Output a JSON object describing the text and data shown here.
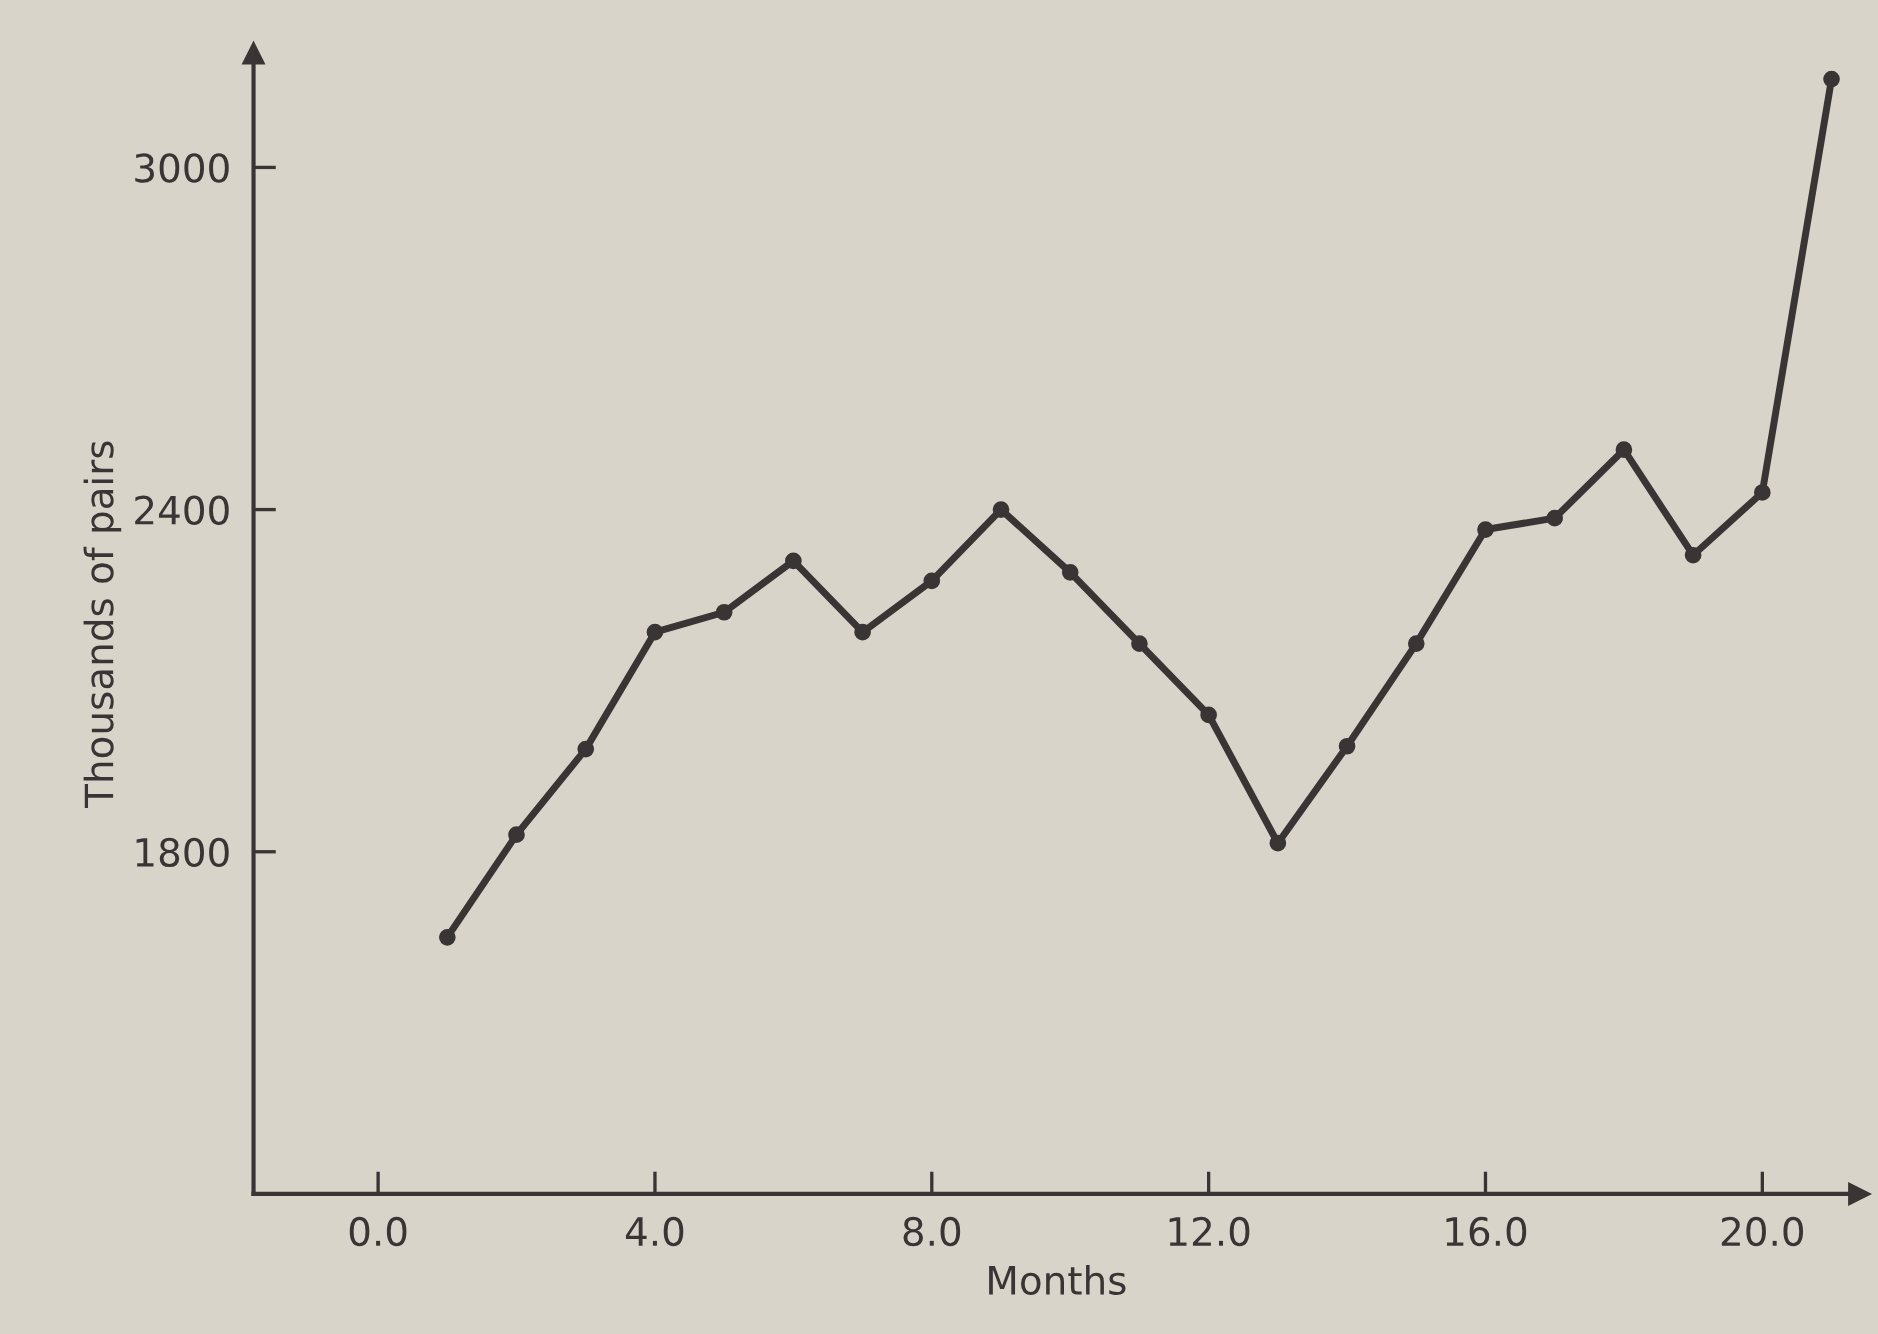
{
  "chart_data": {
    "type": "line",
    "xlabel": "Months",
    "ylabel": "Thousands of pairs",
    "x": [
      1,
      2,
      3,
      4,
      5,
      6,
      7,
      8,
      9,
      10,
      11,
      12,
      13,
      14,
      15,
      16,
      17,
      18,
      19,
      20,
      21
    ],
    "series": [
      {
        "color": "#3a3535",
        "values": [
          1650,
          1830,
          1980,
          2185,
          2220,
          2310,
          2185,
          2275,
          2400,
          2290,
          2165,
          2040,
          1815,
          1985,
          2165,
          2365,
          2385,
          2505,
          2320,
          2430,
          3155
        ]
      }
    ],
    "xlim": [
      -1.8,
      21.4
    ],
    "ylim": [
      1200,
      3200
    ],
    "xticks": [
      {
        "value": 0,
        "label": "0.0"
      },
      {
        "value": 4,
        "label": "4.0"
      },
      {
        "value": 8,
        "label": "8.0"
      },
      {
        "value": 12,
        "label": "12.0"
      },
      {
        "value": 16,
        "label": "16.0"
      },
      {
        "value": 20,
        "label": "20.0"
      }
    ],
    "yticks": [
      1800,
      2400,
      3000
    ],
    "marker": "circle",
    "line_style": "solid",
    "grid": false,
    "legend": false
  }
}
